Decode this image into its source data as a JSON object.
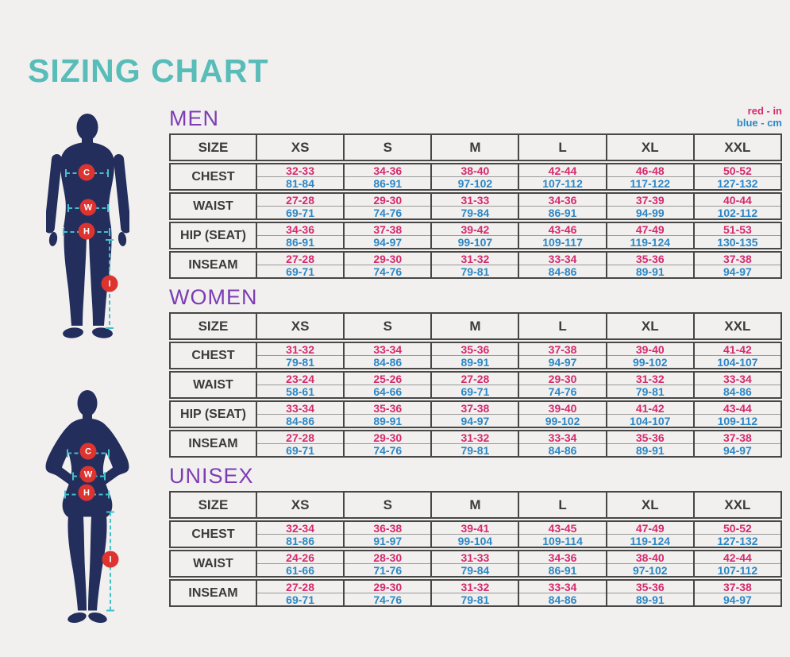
{
  "title": "SIZING CHART",
  "legend": {
    "inches": "red - in",
    "centimeters": "blue - cm"
  },
  "colors": {
    "background": "#f1f0ee",
    "title_teal": "#58bcb8",
    "section_purple": "#7d3cb5",
    "inches_red": "#d62a6e",
    "cm_blue": "#2d87c6",
    "silhouette_navy": "#242e5c",
    "measure_line_teal": "#41c1ca",
    "marker_red": "#dd3430"
  },
  "figures": {
    "markers": [
      "C",
      "W",
      "H",
      "I"
    ]
  },
  "tables": [
    {
      "section": "MEN",
      "size_header": "SIZE",
      "sizes": [
        "XS",
        "S",
        "M",
        "L",
        "XL",
        "XXL"
      ],
      "rows": [
        {
          "label": "CHEST",
          "in": [
            "32-33",
            "34-36",
            "38-40",
            "42-44",
            "46-48",
            "50-52"
          ],
          "cm": [
            "81-84",
            "86-91",
            "97-102",
            "107-112",
            "117-122",
            "127-132"
          ]
        },
        {
          "label": "WAIST",
          "in": [
            "27-28",
            "29-30",
            "31-33",
            "34-36",
            "37-39",
            "40-44"
          ],
          "cm": [
            "69-71",
            "74-76",
            "79-84",
            "86-91",
            "94-99",
            "102-112"
          ]
        },
        {
          "label": "HIP (SEAT)",
          "in": [
            "34-36",
            "37-38",
            "39-42",
            "43-46",
            "47-49",
            "51-53"
          ],
          "cm": [
            "86-91",
            "94-97",
            "99-107",
            "109-117",
            "119-124",
            "130-135"
          ]
        },
        {
          "label": "INSEAM",
          "in": [
            "27-28",
            "29-30",
            "31-32",
            "33-34",
            "35-36",
            "37-38"
          ],
          "cm": [
            "69-71",
            "74-76",
            "79-81",
            "84-86",
            "89-91",
            "94-97"
          ]
        }
      ]
    },
    {
      "section": "WOMEN",
      "size_header": "SIZE",
      "sizes": [
        "XS",
        "S",
        "M",
        "L",
        "XL",
        "XXL"
      ],
      "rows": [
        {
          "label": "CHEST",
          "in": [
            "31-32",
            "33-34",
            "35-36",
            "37-38",
            "39-40",
            "41-42"
          ],
          "cm": [
            "79-81",
            "84-86",
            "89-91",
            "94-97",
            "99-102",
            "104-107"
          ]
        },
        {
          "label": "WAIST",
          "in": [
            "23-24",
            "25-26",
            "27-28",
            "29-30",
            "31-32",
            "33-34"
          ],
          "cm": [
            "58-61",
            "64-66",
            "69-71",
            "74-76",
            "79-81",
            "84-86"
          ]
        },
        {
          "label": "HIP (SEAT)",
          "in": [
            "33-34",
            "35-36",
            "37-38",
            "39-40",
            "41-42",
            "43-44"
          ],
          "cm": [
            "84-86",
            "89-91",
            "94-97",
            "99-102",
            "104-107",
            "109-112"
          ]
        },
        {
          "label": "INSEAM",
          "in": [
            "27-28",
            "29-30",
            "31-32",
            "33-34",
            "35-36",
            "37-38"
          ],
          "cm": [
            "69-71",
            "74-76",
            "79-81",
            "84-86",
            "89-91",
            "94-97"
          ]
        }
      ]
    },
    {
      "section": "UNISEX",
      "size_header": "SIZE",
      "sizes": [
        "XS",
        "S",
        "M",
        "L",
        "XL",
        "XXL"
      ],
      "rows": [
        {
          "label": "CHEST",
          "in": [
            "32-34",
            "36-38",
            "39-41",
            "43-45",
            "47-49",
            "50-52"
          ],
          "cm": [
            "81-86",
            "91-97",
            "99-104",
            "109-114",
            "119-124",
            "127-132"
          ]
        },
        {
          "label": "WAIST",
          "in": [
            "24-26",
            "28-30",
            "31-33",
            "34-36",
            "38-40",
            "42-44"
          ],
          "cm": [
            "61-66",
            "71-76",
            "79-84",
            "86-91",
            "97-102",
            "107-112"
          ]
        },
        {
          "label": "INSEAM",
          "in": [
            "27-28",
            "29-30",
            "31-32",
            "33-34",
            "35-36",
            "37-38"
          ],
          "cm": [
            "69-71",
            "74-76",
            "79-81",
            "84-86",
            "89-91",
            "94-97"
          ]
        }
      ]
    }
  ]
}
